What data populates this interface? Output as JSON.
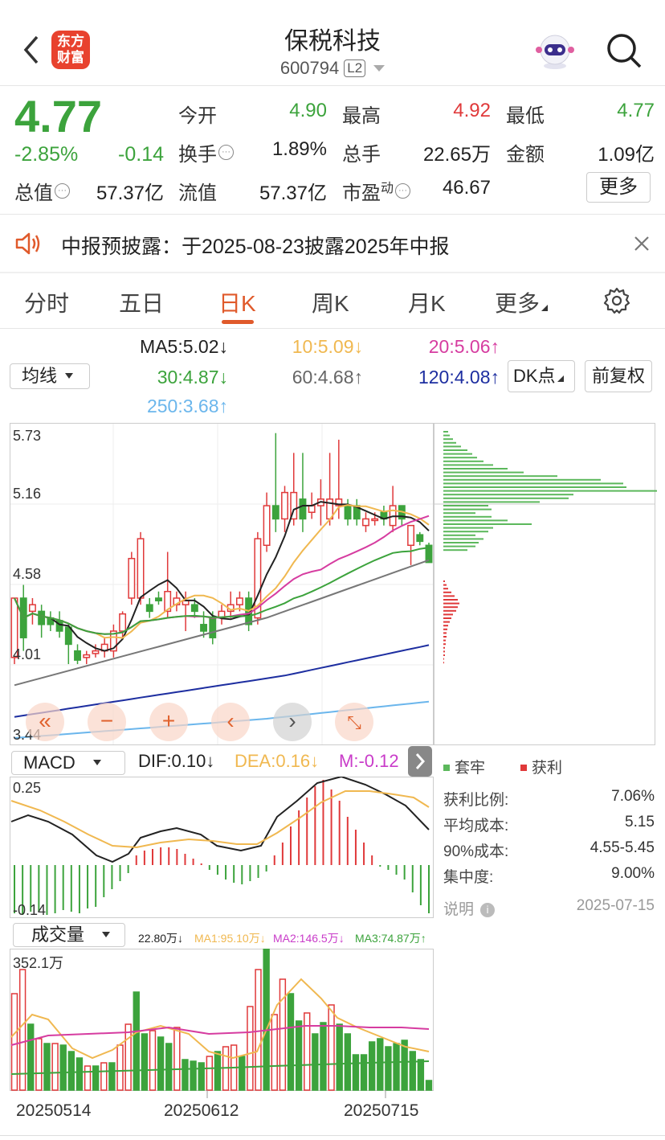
{
  "header": {
    "title": "保税科技",
    "code": "600794",
    "level": "L2",
    "logo_line1": "东方",
    "logo_line2": "财富"
  },
  "quote": {
    "price": "4.77",
    "change_pct": "-2.85%",
    "change": "-0.14",
    "open_label": "今开",
    "open": "4.90",
    "high_label": "最高",
    "high": "4.92",
    "low_label": "最低",
    "low": "4.77",
    "turnover_label": "换手",
    "turnover": "1.89%",
    "volume_label": "总手",
    "volume": "22.65万",
    "amount_label": "金额",
    "amount": "1.09亿",
    "mktcap_label": "总值",
    "mktcap": "57.37亿",
    "float_label": "流值",
    "float_cap": "57.37亿",
    "pe_label": "市盈",
    "pe_sup": "动",
    "pe": "46.67",
    "more": "更多"
  },
  "notice": {
    "text": "中报预披露：于2025-08-23披露2025年中报"
  },
  "tabs": [
    "分时",
    "五日",
    "日K",
    "周K",
    "月K",
    "更多"
  ],
  "active_tab": 2,
  "ma_legend": {
    "selector": "均线",
    "ma5": "MA5:5.02↓",
    "ma10": "10:5.09↓",
    "ma20": "20:5.06↑",
    "ma30": "30:4.87↓",
    "ma60": "60:4.68↑",
    "ma120": "120:4.08↑",
    "ma250": "250:3.68↑",
    "dk_button": "DK点",
    "adjust_button": "前复权"
  },
  "colors": {
    "up": "#e0393a",
    "down": "#3ca33c",
    "ma5": "#222222",
    "ma10": "#f0b850",
    "ma20": "#d63ca0",
    "ma30": "#3ca33c",
    "ma60": "#777777",
    "ma120": "#1d2ea0",
    "ma250": "#6bb6ec",
    "accent": "#e05a2b"
  },
  "price_axis": [
    "5.73",
    "5.16",
    "4.58",
    "4.01",
    "3.44"
  ],
  "controls": [
    "rewind-icon",
    "zoom-out-icon",
    "zoom-in-icon",
    "prev-icon",
    "next-icon",
    "fullscreen-icon"
  ],
  "chip": {
    "legend_trapped": "套牢",
    "legend_profit": "获利",
    "rows": [
      {
        "label": "获利比例:",
        "value": "7.06%"
      },
      {
        "label": "平均成本:",
        "value": "5.15"
      },
      {
        "label": "90%成本:",
        "value": "4.55-5.45"
      },
      {
        "label": "集中度:",
        "value": "9.00%"
      }
    ],
    "note_label": "说明",
    "date": "2025-07-15"
  },
  "macd": {
    "selector": "MACD",
    "dif": "DIF:0.10↓",
    "dea": "DEA:0.16↓",
    "m": "M:-0.12",
    "axis_top": "0.25",
    "axis_bottom": "-0.14"
  },
  "volume": {
    "selector": "成交量",
    "vol": "22.80万↓",
    "ma1": "MA1:95.10万↓",
    "ma2": "MA2:146.5万↓",
    "ma3": "MA3:74.87万↑",
    "axis_top": "352.1万"
  },
  "dates": [
    "20250514",
    "20250612",
    "20250715"
  ],
  "chart_data": {
    "type": "candlestick",
    "ylim": [
      3.44,
      5.73
    ],
    "candles": [
      {
        "o": 4.05,
        "h": 4.5,
        "l": 4.0,
        "c": 4.5
      },
      {
        "o": 4.5,
        "h": 4.6,
        "l": 4.1,
        "c": 4.2
      },
      {
        "o": 4.4,
        "h": 4.5,
        "l": 4.3,
        "c": 4.45
      },
      {
        "o": 4.4,
        "h": 4.45,
        "l": 4.2,
        "c": 4.3
      },
      {
        "o": 4.35,
        "h": 4.4,
        "l": 4.25,
        "c": 4.3
      },
      {
        "o": 4.33,
        "h": 4.4,
        "l": 4.2,
        "c": 4.25
      },
      {
        "o": 4.28,
        "h": 4.3,
        "l": 4.0,
        "c": 4.15
      },
      {
        "o": 4.1,
        "h": 4.15,
        "l": 4.0,
        "c": 4.03
      },
      {
        "o": 4.05,
        "h": 4.1,
        "l": 4.0,
        "c": 4.07
      },
      {
        "o": 4.08,
        "h": 4.15,
        "l": 4.05,
        "c": 4.1
      },
      {
        "o": 4.1,
        "h": 4.2,
        "l": 4.05,
        "c": 4.15
      },
      {
        "o": 4.1,
        "h": 4.3,
        "l": 4.05,
        "c": 4.25
      },
      {
        "o": 4.25,
        "h": 4.4,
        "l": 4.2,
        "c": 4.38
      },
      {
        "o": 4.5,
        "h": 4.85,
        "l": 4.45,
        "c": 4.8
      },
      {
        "o": 4.5,
        "h": 5.0,
        "l": 4.45,
        "c": 4.95
      },
      {
        "o": 4.45,
        "h": 4.5,
        "l": 4.35,
        "c": 4.4
      },
      {
        "o": 4.5,
        "h": 4.55,
        "l": 4.45,
        "c": 4.48
      },
      {
        "o": 4.4,
        "h": 4.85,
        "l": 4.35,
        "c": 4.55
      },
      {
        "o": 4.45,
        "h": 4.55,
        "l": 4.4,
        "c": 4.5
      },
      {
        "o": 4.45,
        "h": 4.55,
        "l": 4.25,
        "c": 4.48
      },
      {
        "o": 4.45,
        "h": 4.5,
        "l": 4.35,
        "c": 4.4
      },
      {
        "o": 4.3,
        "h": 4.4,
        "l": 4.2,
        "c": 4.25
      },
      {
        "o": 4.35,
        "h": 4.4,
        "l": 4.15,
        "c": 4.2
      },
      {
        "o": 4.35,
        "h": 4.45,
        "l": 4.3,
        "c": 4.4
      },
      {
        "o": 4.4,
        "h": 4.55,
        "l": 4.35,
        "c": 4.45
      },
      {
        "o": 4.45,
        "h": 4.55,
        "l": 4.4,
        "c": 4.5
      },
      {
        "o": 4.5,
        "h": 4.55,
        "l": 4.25,
        "c": 4.3
      },
      {
        "o": 4.35,
        "h": 5.0,
        "l": 4.3,
        "c": 4.95
      },
      {
        "o": 4.9,
        "h": 5.3,
        "l": 4.85,
        "c": 5.2
      },
      {
        "o": 5.2,
        "h": 5.75,
        "l": 5.0,
        "c": 5.1
      },
      {
        "o": 5.1,
        "h": 5.35,
        "l": 5.0,
        "c": 5.3
      },
      {
        "o": 5.1,
        "h": 5.6,
        "l": 5.05,
        "c": 5.3
      },
      {
        "o": 5.25,
        "h": 5.6,
        "l": 5.0,
        "c": 5.1
      },
      {
        "o": 5.15,
        "h": 5.3,
        "l": 5.1,
        "c": 5.2
      },
      {
        "o": 5.2,
        "h": 5.4,
        "l": 5.05,
        "c": 5.25
      },
      {
        "o": 5.1,
        "h": 5.6,
        "l": 5.05,
        "c": 5.25
      },
      {
        "o": 5.2,
        "h": 5.7,
        "l": 5.1,
        "c": 5.25
      },
      {
        "o": 5.2,
        "h": 5.25,
        "l": 5.05,
        "c": 5.1
      },
      {
        "o": 5.2,
        "h": 5.25,
        "l": 5.05,
        "c": 5.1
      },
      {
        "o": 5.05,
        "h": 5.15,
        "l": 5.0,
        "c": 5.1
      },
      {
        "o": 5.1,
        "h": 5.15,
        "l": 5.05,
        "c": 5.1
      },
      {
        "o": 5.15,
        "h": 5.2,
        "l": 5.05,
        "c": 5.1
      },
      {
        "o": 5.05,
        "h": 5.35,
        "l": 5.0,
        "c": 5.2
      },
      {
        "o": 5.2,
        "h": 5.2,
        "l": 5.05,
        "c": 5.1
      },
      {
        "o": 4.9,
        "h": 5.05,
        "l": 4.75,
        "c": 5.05
      },
      {
        "o": 4.98,
        "h": 5.0,
        "l": 4.9,
        "c": 4.93
      },
      {
        "o": 4.9,
        "h": 4.92,
        "l": 4.77,
        "c": 4.77
      }
    ]
  }
}
